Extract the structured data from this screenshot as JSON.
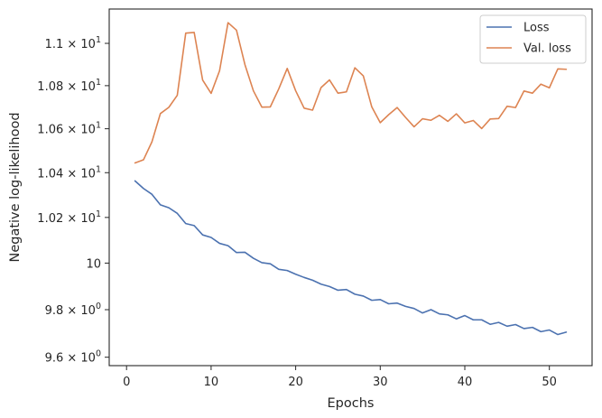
{
  "chart_data": {
    "type": "line",
    "title": "",
    "xlabel": "Epochs",
    "ylabel": "Negative log-likelihood",
    "xlim": [
      -2.05,
      55.05
    ],
    "ylim": [
      9.565,
      11.165
    ],
    "yscale": "log",
    "grid": false,
    "legend_position": "top-right",
    "x_ticks": [
      {
        "value": 0,
        "label": "0"
      },
      {
        "value": 10,
        "label": "10"
      },
      {
        "value": 20,
        "label": "20"
      },
      {
        "value": 30,
        "label": "30"
      },
      {
        "value": 40,
        "label": "40"
      },
      {
        "value": 50,
        "label": "50"
      }
    ],
    "y_ticks": [
      {
        "value": 9.6,
        "main": "9.6 × 10",
        "exp": "0"
      },
      {
        "value": 9.8,
        "main": "9.8 × 10",
        "exp": "0"
      },
      {
        "value": 10.0,
        "main": "10",
        "exp": ""
      },
      {
        "value": 10.2,
        "main": "1.02 × 10",
        "exp": "1"
      },
      {
        "value": 10.4,
        "main": "1.04 × 10",
        "exp": "1"
      },
      {
        "value": 10.6,
        "main": "1.06 × 10",
        "exp": "1"
      },
      {
        "value": 10.8,
        "main": "1.08 × 10",
        "exp": "1"
      },
      {
        "value": 11.0,
        "main": "1.1 × 10",
        "exp": "1"
      }
    ],
    "x": [
      1,
      2,
      3,
      4,
      5,
      6,
      7,
      8,
      9,
      10,
      11,
      12,
      13,
      14,
      15,
      16,
      17,
      18,
      19,
      20,
      21,
      22,
      23,
      24,
      25,
      26,
      27,
      28,
      29,
      30,
      31,
      32,
      33,
      34,
      35,
      36,
      37,
      38,
      39,
      40,
      41,
      42,
      43,
      44,
      45,
      46,
      47,
      48,
      49,
      50,
      51,
      52
    ],
    "series": [
      {
        "name": "Loss",
        "color": "#4c72b0",
        "values": [
          10.363,
          10.329,
          10.303,
          10.256,
          10.243,
          10.218,
          10.173,
          10.164,
          10.123,
          10.112,
          10.086,
          10.076,
          10.046,
          10.047,
          10.021,
          10.002,
          9.997,
          9.973,
          9.968,
          9.952,
          9.938,
          9.926,
          9.909,
          9.899,
          9.883,
          9.886,
          9.866,
          9.858,
          9.84,
          9.843,
          9.825,
          9.828,
          9.814,
          9.805,
          9.786,
          9.8,
          9.782,
          9.778,
          9.761,
          9.775,
          9.757,
          9.757,
          9.738,
          9.746,
          9.73,
          9.737,
          9.72,
          9.725,
          9.707,
          9.714,
          9.695,
          9.705
        ]
      },
      {
        "name": "Val. loss",
        "color": "#dd8452",
        "values": [
          10.444,
          10.458,
          10.54,
          10.67,
          10.699,
          10.755,
          11.049,
          11.052,
          10.826,
          10.764,
          10.87,
          11.099,
          11.063,
          10.899,
          10.776,
          10.7,
          10.701,
          10.785,
          10.881,
          10.776,
          10.695,
          10.686,
          10.791,
          10.827,
          10.765,
          10.771,
          10.884,
          10.846,
          10.701,
          10.628,
          10.665,
          10.698,
          10.652,
          10.609,
          10.646,
          10.639,
          10.662,
          10.634,
          10.669,
          10.627,
          10.638,
          10.601,
          10.645,
          10.647,
          10.704,
          10.698,
          10.775,
          10.765,
          10.807,
          10.79,
          10.879,
          10.877
        ]
      }
    ]
  }
}
